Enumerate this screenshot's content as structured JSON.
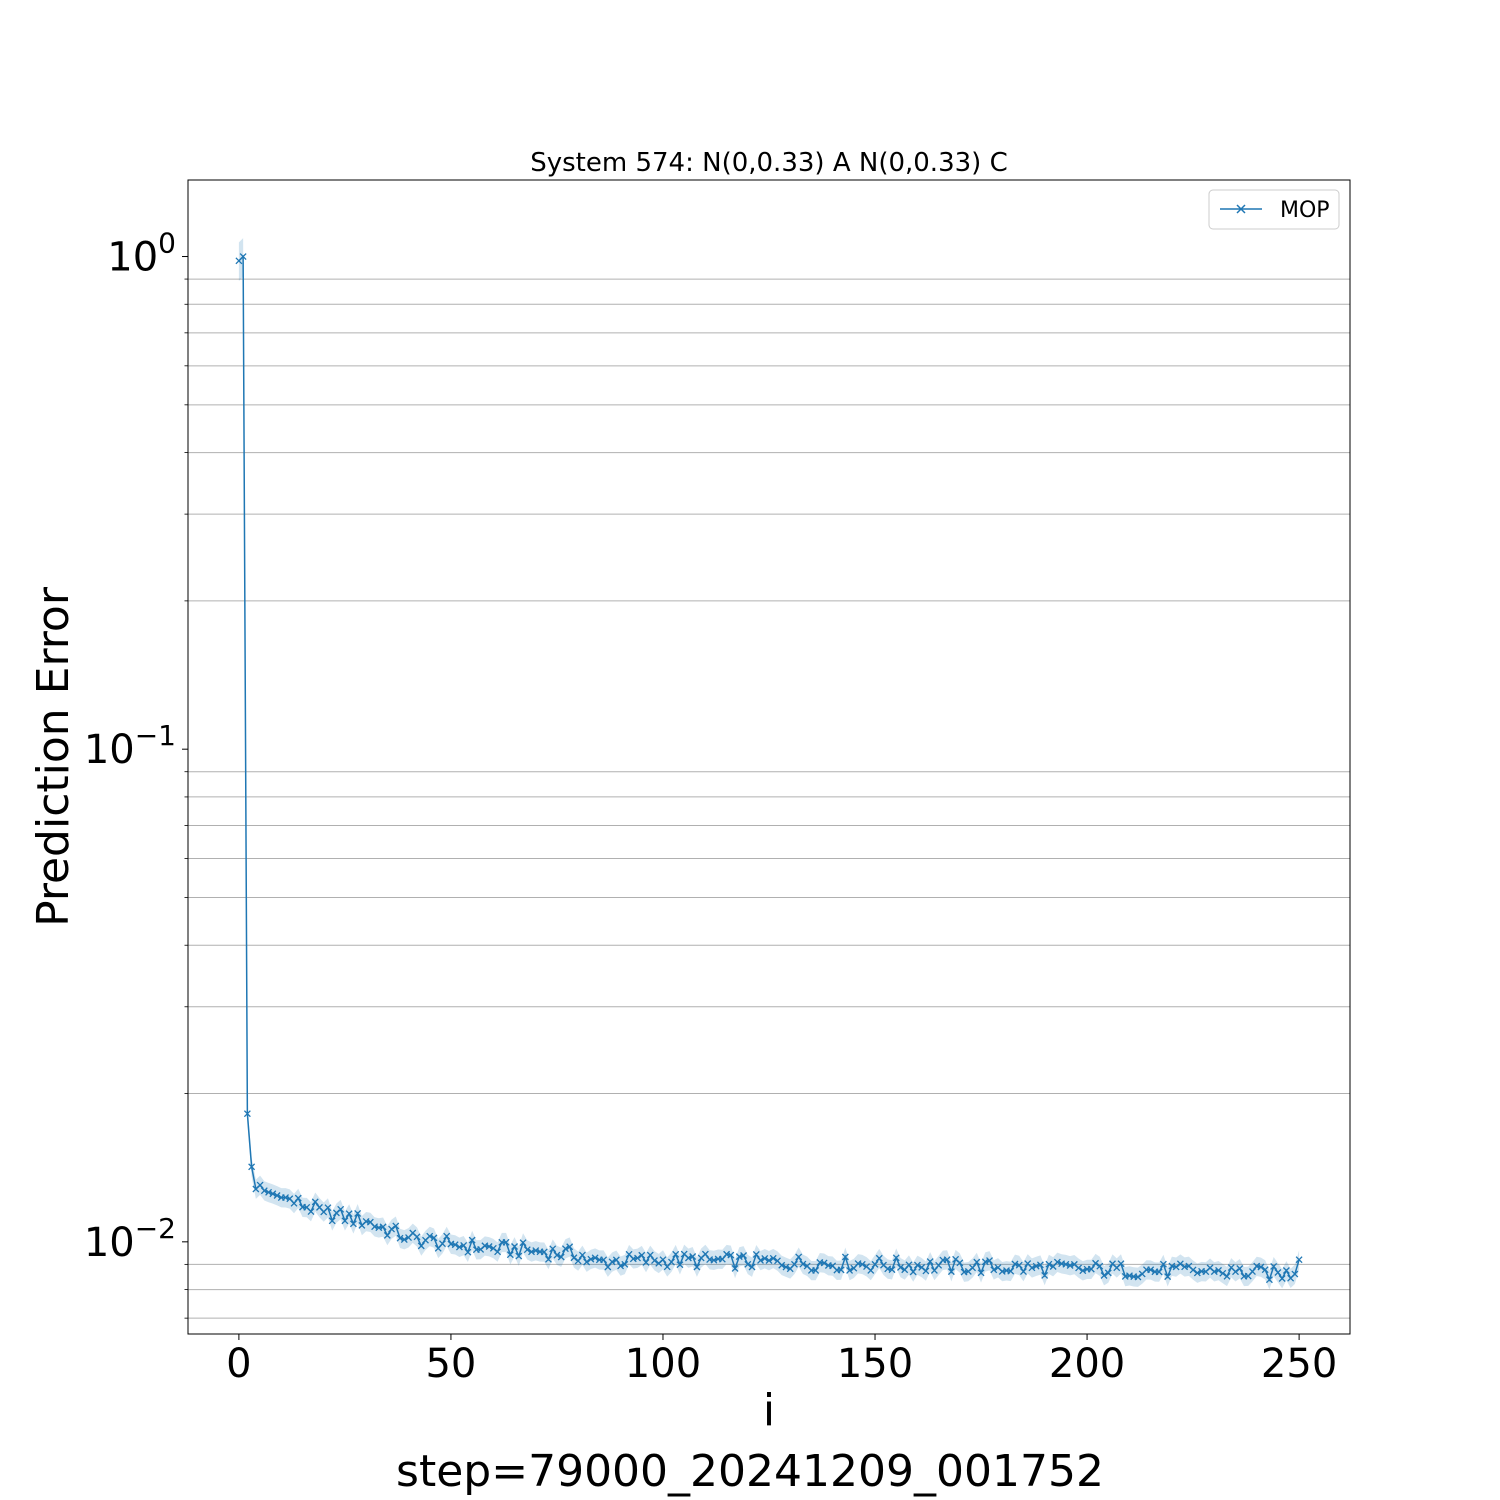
{
  "chart_data": {
    "type": "line",
    "title": "System 574: N(0,0.33) A N(0,0.33) C",
    "xlabel": "i",
    "ylabel": "Prediction Error",
    "footer": "step=79000_20241209_001752",
    "y_scale": "log",
    "xlim": [
      -12,
      262
    ],
    "ylim": [
      0.0065,
      1.43
    ],
    "x_ticks": [
      0,
      50,
      100,
      150,
      200,
      250
    ],
    "y_ticks": [
      {
        "value": 1,
        "base": "10",
        "exp": "0"
      },
      {
        "value": 0.1,
        "base": "10",
        "exp": "−1"
      },
      {
        "value": 0.01,
        "base": "10",
        "exp": "−2"
      }
    ],
    "grid": "y-minor",
    "legend": {
      "position": "top-right",
      "entries": [
        "MOP"
      ]
    },
    "colors": {
      "line": "#1f77b4",
      "band": "#1f77b4",
      "grid": "#b0b0b0"
    },
    "series": [
      {
        "name": "MOP",
        "marker": "x",
        "band": "shaded",
        "keypoints": [
          [
            0,
            0.98
          ],
          [
            1,
            1.0
          ],
          [
            2,
            0.0182
          ],
          [
            3,
            0.0142
          ],
          [
            4,
            0.0128
          ],
          [
            6,
            0.0127
          ],
          [
            10,
            0.0123
          ],
          [
            20,
            0.0115
          ],
          [
            30,
            0.011
          ],
          [
            40,
            0.0102
          ],
          [
            50,
            0.0099
          ],
          [
            60,
            0.0097
          ],
          [
            70,
            0.0096
          ],
          [
            81,
            0.0094
          ],
          [
            82,
            0.0091
          ],
          [
            100,
            0.0092
          ],
          [
            150,
            0.009
          ],
          [
            200,
            0.0088
          ],
          [
            230,
            0.0087
          ],
          [
            249,
            0.0086
          ],
          [
            250,
            0.0092
          ]
        ]
      }
    ]
  }
}
